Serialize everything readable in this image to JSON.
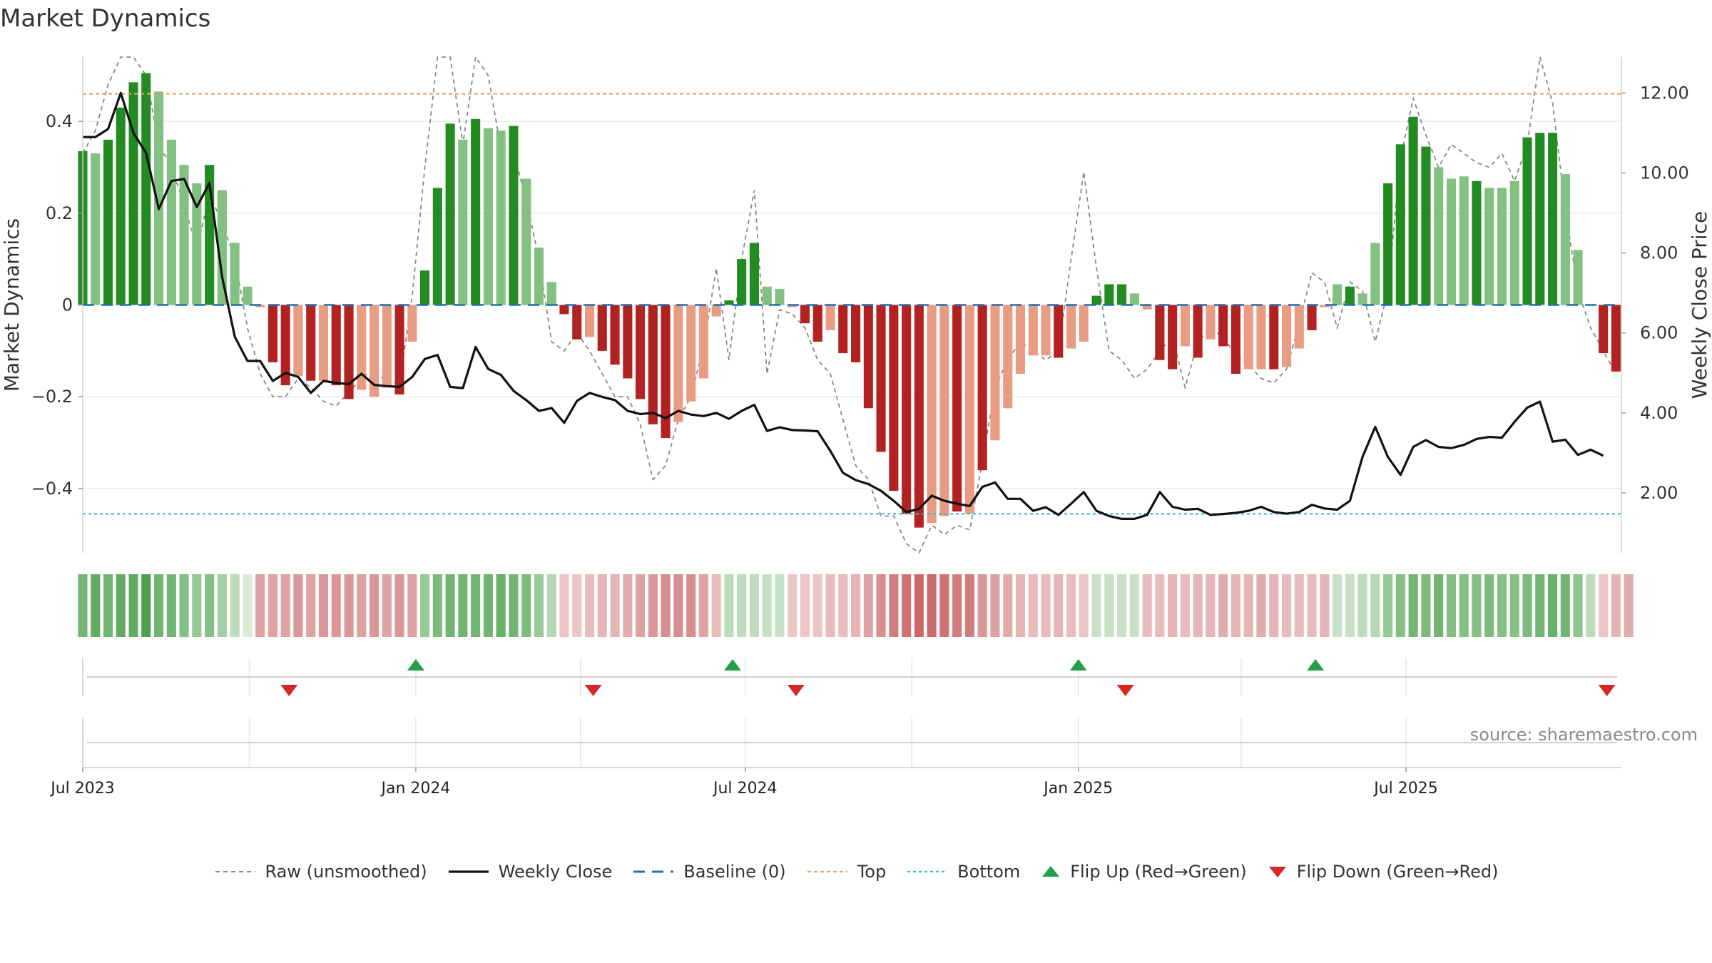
{
  "page_title": "Market Dynamics",
  "source_text": "source: sharemaestro.com",
  "colors": {
    "green_strong": "#228B22",
    "green_light": "#82C182",
    "red_strong": "#B22222",
    "red_light": "#E89C83",
    "close_line": "#111111",
    "raw_line": "#888888",
    "baseline": "#1f6fb0",
    "top_line": "#e3a36f",
    "bottom_line": "#3bbcc8",
    "flip_up": "#22a045",
    "flip_down": "#d62728"
  },
  "legend": [
    {
      "key": "raw",
      "label": "Raw (unsmoothed)"
    },
    {
      "key": "close",
      "label": "Weekly Close"
    },
    {
      "key": "baseline",
      "label": "Baseline (0)"
    },
    {
      "key": "top",
      "label": "Top"
    },
    {
      "key": "bottom",
      "label": "Bottom"
    },
    {
      "key": "flip_up",
      "label": "Flip Up (Red→Green)"
    },
    {
      "key": "flip_down",
      "label": "Flip Down (Green→Red)"
    }
  ],
  "chart_data": {
    "type": "bar",
    "title": "Market Dynamics",
    "ylabel_left": "Market Dynamics",
    "ylabel_right": "Weekly Close Price",
    "x_start": "2023-07-01",
    "x_end": "2025-10-28",
    "xticks": [
      {
        "date": "2023-07-01",
        "label": "Jul 2023"
      },
      {
        "date": "2024-01-01",
        "label": "Jan 2024"
      },
      {
        "date": "2024-07-01",
        "label": "Jul 2024"
      },
      {
        "date": "2025-01-01",
        "label": "Jan 2025"
      },
      {
        "date": "2025-07-01",
        "label": "Jul 2025"
      }
    ],
    "month_grid": [
      "2023-10-01",
      "2024-04-01",
      "2024-10-01",
      "2025-04-01"
    ],
    "left_axis": {
      "min": -0.54,
      "max": 0.54,
      "ticks": [
        0.4,
        0.2,
        0,
        -0.2,
        -0.4
      ],
      "tick_labels": [
        "0.4",
        "0.2",
        "0",
        "−0.2",
        "−0.4"
      ]
    },
    "right_axis": {
      "min": 0.5,
      "max": 12.9,
      "ticks": [
        12,
        10,
        8,
        6,
        4,
        2
      ],
      "tick_labels": [
        "12.00",
        "10.00",
        "8.00",
        "6.00",
        "4.00",
        "2.00"
      ]
    },
    "top_level": 0.46,
    "bottom_level": -0.455,
    "baseline": 0,
    "first_week": "2023-07-01",
    "week_days": 7,
    "dynamics": [
      0.335,
      0.33,
      0.36,
      0.43,
      0.485,
      0.505,
      0.465,
      0.36,
      0.305,
      0.265,
      0.305,
      0.25,
      0.135,
      0.04,
      -0.005,
      -0.125,
      -0.175,
      -0.155,
      -0.165,
      -0.165,
      -0.175,
      -0.205,
      -0.185,
      -0.2,
      -0.18,
      -0.195,
      -0.08,
      0.075,
      0.255,
      0.395,
      0.36,
      0.405,
      0.385,
      0.38,
      0.39,
      0.275,
      0.125,
      0.05,
      -0.02,
      -0.075,
      -0.07,
      -0.1,
      -0.13,
      -0.16,
      -0.205,
      -0.26,
      -0.29,
      -0.255,
      -0.21,
      -0.16,
      -0.025,
      0.01,
      0.1,
      0.135,
      0.04,
      0.035,
      -0.005,
      -0.04,
      -0.08,
      -0.055,
      -0.105,
      -0.125,
      -0.225,
      -0.32,
      -0.405,
      -0.455,
      -0.485,
      -0.475,
      -0.46,
      -0.45,
      -0.455,
      -0.36,
      -0.295,
      -0.225,
      -0.15,
      -0.11,
      -0.11,
      -0.115,
      -0.095,
      -0.08,
      0.02,
      0.045,
      0.045,
      0.025,
      -0.01,
      -0.12,
      -0.14,
      -0.09,
      -0.115,
      -0.075,
      -0.09,
      -0.15,
      -0.14,
      -0.14,
      -0.14,
      -0.135,
      -0.095,
      -0.055,
      -0.005,
      0.045,
      0.04,
      0.025,
      0.135,
      0.265,
      0.35,
      0.41,
      0.345,
      0.3,
      0.275,
      0.28,
      0.27,
      0.255,
      0.255,
      0.27,
      0.365,
      0.375,
      0.375,
      0.285,
      0.12,
      0,
      -0.105,
      -0.145
    ],
    "intensity": [
      1,
      0,
      1,
      1,
      1,
      1,
      0,
      0,
      0,
      0,
      1,
      0,
      0,
      0,
      0,
      1,
      1,
      0,
      1,
      0,
      1,
      1,
      0,
      0,
      0,
      1,
      0,
      1,
      1,
      1,
      0,
      1,
      0,
      0,
      1,
      0,
      0,
      0,
      1,
      1,
      0,
      1,
      1,
      1,
      1,
      1,
      1,
      0,
      0,
      0,
      0,
      1,
      1,
      1,
      0,
      0,
      0,
      1,
      1,
      0,
      1,
      1,
      1,
      1,
      1,
      1,
      1,
      0,
      0,
      1,
      0,
      1,
      0,
      0,
      0,
      0,
      0,
      1,
      0,
      0,
      1,
      1,
      1,
      0,
      0,
      1,
      1,
      0,
      1,
      0,
      1,
      1,
      0,
      0,
      1,
      0,
      0,
      1,
      0,
      0,
      1,
      0,
      0,
      1,
      1,
      1,
      1,
      0,
      0,
      0,
      1,
      0,
      0,
      0,
      1,
      1,
      1,
      0,
      0,
      0,
      1,
      1
    ],
    "raw": [
      0.33,
      0.38,
      0.48,
      0.58,
      0.6,
      0.5,
      0.35,
      0.3,
      0.22,
      0.12,
      0.24,
      0.18,
      0.1,
      -0.05,
      -0.15,
      -0.2,
      -0.2,
      -0.16,
      -0.18,
      -0.21,
      -0.22,
      -0.19,
      -0.16,
      -0.14,
      -0.17,
      -0.17,
      0.02,
      0.3,
      0.55,
      0.6,
      0.35,
      0.65,
      0.5,
      0.34,
      0.33,
      0.23,
      0.1,
      -0.08,
      -0.1,
      -0.06,
      -0.1,
      -0.15,
      -0.2,
      -0.2,
      -0.26,
      -0.38,
      -0.35,
      -0.25,
      -0.2,
      -0.09,
      0.08,
      -0.12,
      0.1,
      0.25,
      -0.15,
      -0.01,
      -0.02,
      -0.05,
      -0.12,
      -0.15,
      -0.25,
      -0.35,
      -0.38,
      -0.46,
      -0.46,
      -0.52,
      -0.54,
      -0.48,
      -0.5,
      -0.48,
      -0.49,
      -0.34,
      -0.18,
      -0.12,
      -0.08,
      -0.1,
      -0.12,
      -0.1,
      0.1,
      0.29,
      0.08,
      -0.1,
      -0.12,
      -0.16,
      -0.14,
      -0.1,
      -0.07,
      -0.18,
      -0.08,
      -0.05,
      -0.07,
      -0.11,
      -0.13,
      -0.16,
      -0.17,
      -0.14,
      -0.04,
      0.07,
      0.05,
      -0.05,
      0.05,
      0.03,
      -0.08,
      0.03,
      0.32,
      0.45,
      0.37,
      0.3,
      0.35,
      0.33,
      0.31,
      0.3,
      0.33,
      0.27,
      0.35,
      0.55,
      0.44,
      0.21,
      0.03,
      -0.05,
      -0.1,
      -0.15
    ],
    "close": [
      10.9,
      10.9,
      11.1,
      12.0,
      11.0,
      10.5,
      9.1,
      9.8,
      9.85,
      9.15,
      9.75,
      7.4,
      5.9,
      5.3,
      5.3,
      4.8,
      5.0,
      4.9,
      4.5,
      4.8,
      4.75,
      4.72,
      4.98,
      4.7,
      4.67,
      4.65,
      4.9,
      5.35,
      5.45,
      4.65,
      4.62,
      5.65,
      5.1,
      4.95,
      4.55,
      4.32,
      4.05,
      4.12,
      3.75,
      4.3,
      4.5,
      4.4,
      4.32,
      4.05,
      3.97,
      4.0,
      3.87,
      4.05,
      3.96,
      3.92,
      4.0,
      3.85,
      4.05,
      4.2,
      3.55,
      3.64,
      3.57,
      3.56,
      3.54,
      3.05,
      2.5,
      2.32,
      2.22,
      2.05,
      1.8,
      1.52,
      1.6,
      1.93,
      1.8,
      1.73,
      1.67,
      2.15,
      2.26,
      1.85,
      1.85,
      1.55,
      1.64,
      1.45,
      1.73,
      2.02,
      1.55,
      1.42,
      1.35,
      1.35,
      1.45,
      2.02,
      1.65,
      1.58,
      1.6,
      1.45,
      1.47,
      1.5,
      1.55,
      1.65,
      1.52,
      1.48,
      1.52,
      1.7,
      1.61,
      1.58,
      1.8,
      2.9,
      3.65,
      2.9,
      2.45,
      3.15,
      3.32,
      3.15,
      3.12,
      3.2,
      3.35,
      3.4,
      3.38,
      3.78,
      4.13,
      4.28,
      3.28,
      3.33,
      2.95,
      3.08,
      2.93
    ],
    "regime_strip": [
      0.75,
      0.85,
      0.75,
      0.85,
      0.85,
      0.95,
      0.75,
      0.75,
      0.65,
      0.55,
      0.65,
      0.5,
      0.35,
      0.2,
      0.5,
      0.5,
      0.5,
      0.55,
      0.5,
      0.55,
      0.55,
      0.55,
      0.5,
      0.55,
      0.5,
      0.55,
      0.5,
      0.55,
      0.7,
      0.75,
      0.75,
      0.75,
      0.75,
      0.8,
      0.75,
      0.7,
      0.55,
      0.4,
      0.3,
      0.3,
      0.35,
      0.4,
      0.4,
      0.45,
      0.5,
      0.55,
      0.6,
      0.6,
      0.6,
      0.5,
      0.35,
      0.35,
      0.35,
      0.35,
      0.3,
      0.3,
      0.3,
      0.3,
      0.3,
      0.35,
      0.35,
      0.4,
      0.5,
      0.6,
      0.7,
      0.75,
      0.8,
      0.8,
      0.75,
      0.7,
      0.7,
      0.55,
      0.5,
      0.45,
      0.4,
      0.35,
      0.35,
      0.4,
      0.35,
      0.3,
      0.3,
      0.3,
      0.3,
      0.3,
      0.35,
      0.35,
      0.4,
      0.35,
      0.4,
      0.4,
      0.45,
      0.4,
      0.4,
      0.45,
      0.4,
      0.35,
      0.35,
      0.35,
      0.4,
      0.3,
      0.3,
      0.35,
      0.4,
      0.55,
      0.65,
      0.75,
      0.7,
      0.75,
      0.65,
      0.65,
      0.65,
      0.7,
      0.65,
      0.65,
      0.7,
      0.75,
      0.8,
      0.75,
      0.6,
      0.35,
      0.3,
      0.4,
      0.45
    ],
    "flip_up": [
      "2024-01-01",
      "2024-06-24",
      "2025-01-01",
      "2025-05-12"
    ],
    "flip_down": [
      "2023-10-23",
      "2024-04-08",
      "2024-07-29",
      "2025-01-27",
      "2025-10-20"
    ]
  }
}
